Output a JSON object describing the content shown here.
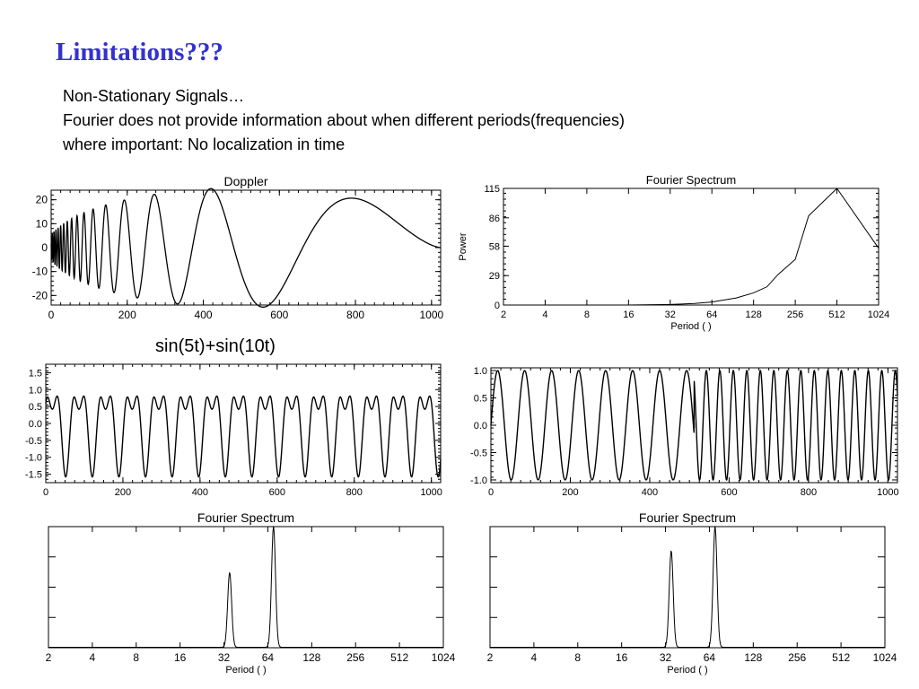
{
  "slide": {
    "title": "Limitations???",
    "lines": [
      "Non-Stationary Signals…",
      "Fourier does not provide information about when different periods(frequencies)",
      "where important: No localization in time"
    ],
    "caption": "sin(5t)+sin(10t)"
  },
  "chart_data": [
    {
      "id": "doppler",
      "type": "line",
      "title": "Doppler",
      "xlabel": "",
      "ylabel": "",
      "xlim": [
        0,
        1024
      ],
      "ylim": [
        -24,
        24
      ],
      "xticks": [
        0,
        200,
        400,
        600,
        800,
        1000
      ],
      "yticks": [
        -20,
        -10,
        0,
        10,
        20
      ],
      "signal": "doppler"
    },
    {
      "id": "fourier-doppler",
      "type": "line",
      "title": "Fourier Spectrum",
      "xlabel": "Period ( )",
      "ylabel": "Power",
      "xscale": "log2",
      "xlim": [
        2,
        1024
      ],
      "ylim": [
        0,
        115
      ],
      "xticks": [
        2,
        4,
        8,
        16,
        32,
        64,
        128,
        256,
        512,
        1024
      ],
      "yticks": [
        0,
        29,
        58,
        86,
        115
      ],
      "x": [
        2,
        4,
        8,
        16,
        32,
        48,
        64,
        96,
        128,
        160,
        192,
        256,
        320,
        512,
        1024
      ],
      "y": [
        0,
        0,
        0,
        0,
        0.5,
        1.5,
        3,
        7,
        12,
        18,
        30,
        45,
        88,
        115,
        56
      ]
    },
    {
      "id": "sum-signal",
      "type": "line",
      "title": "",
      "xlim": [
        0,
        1024
      ],
      "ylim": [
        -1.75,
        1.75
      ],
      "xticks": [
        0,
        200,
        400,
        600,
        800,
        1000
      ],
      "yticks": [
        -1.5,
        -1.0,
        -0.5,
        0.0,
        0.5,
        1.0,
        1.5
      ],
      "signal": "sum"
    },
    {
      "id": "switch-signal",
      "type": "line",
      "title": "",
      "xlim": [
        0,
        1024
      ],
      "ylim": [
        -1.05,
        1.05
      ],
      "xticks": [
        0,
        200,
        400,
        600,
        800,
        1000
      ],
      "yticks": [
        -1.0,
        -0.5,
        0.0,
        0.5,
        1.0
      ],
      "signal": "switch"
    },
    {
      "id": "fourier-sum",
      "type": "line",
      "title": "Fourier Spectrum",
      "xlabel": "Period ( )",
      "xscale": "log2",
      "xlim": [
        2,
        1024
      ],
      "ylim": [
        0,
        1
      ],
      "xticks": [
        2,
        4,
        8,
        16,
        32,
        64,
        128,
        256,
        512,
        1024
      ],
      "peaks": [
        {
          "period": 35,
          "height": 0.62
        },
        {
          "period": 70,
          "height": 1.0
        }
      ]
    },
    {
      "id": "fourier-switch",
      "type": "line",
      "title": "Fourier Spectrum",
      "xlabel": "Period ( )",
      "xscale": "log2",
      "xlim": [
        2,
        1024
      ],
      "ylim": [
        0,
        1
      ],
      "xticks": [
        2,
        4,
        8,
        16,
        32,
        64,
        128,
        256,
        512,
        1024
      ],
      "peaks": [
        {
          "period": 35,
          "height": 0.8
        },
        {
          "period": 70,
          "height": 1.0
        }
      ]
    }
  ]
}
